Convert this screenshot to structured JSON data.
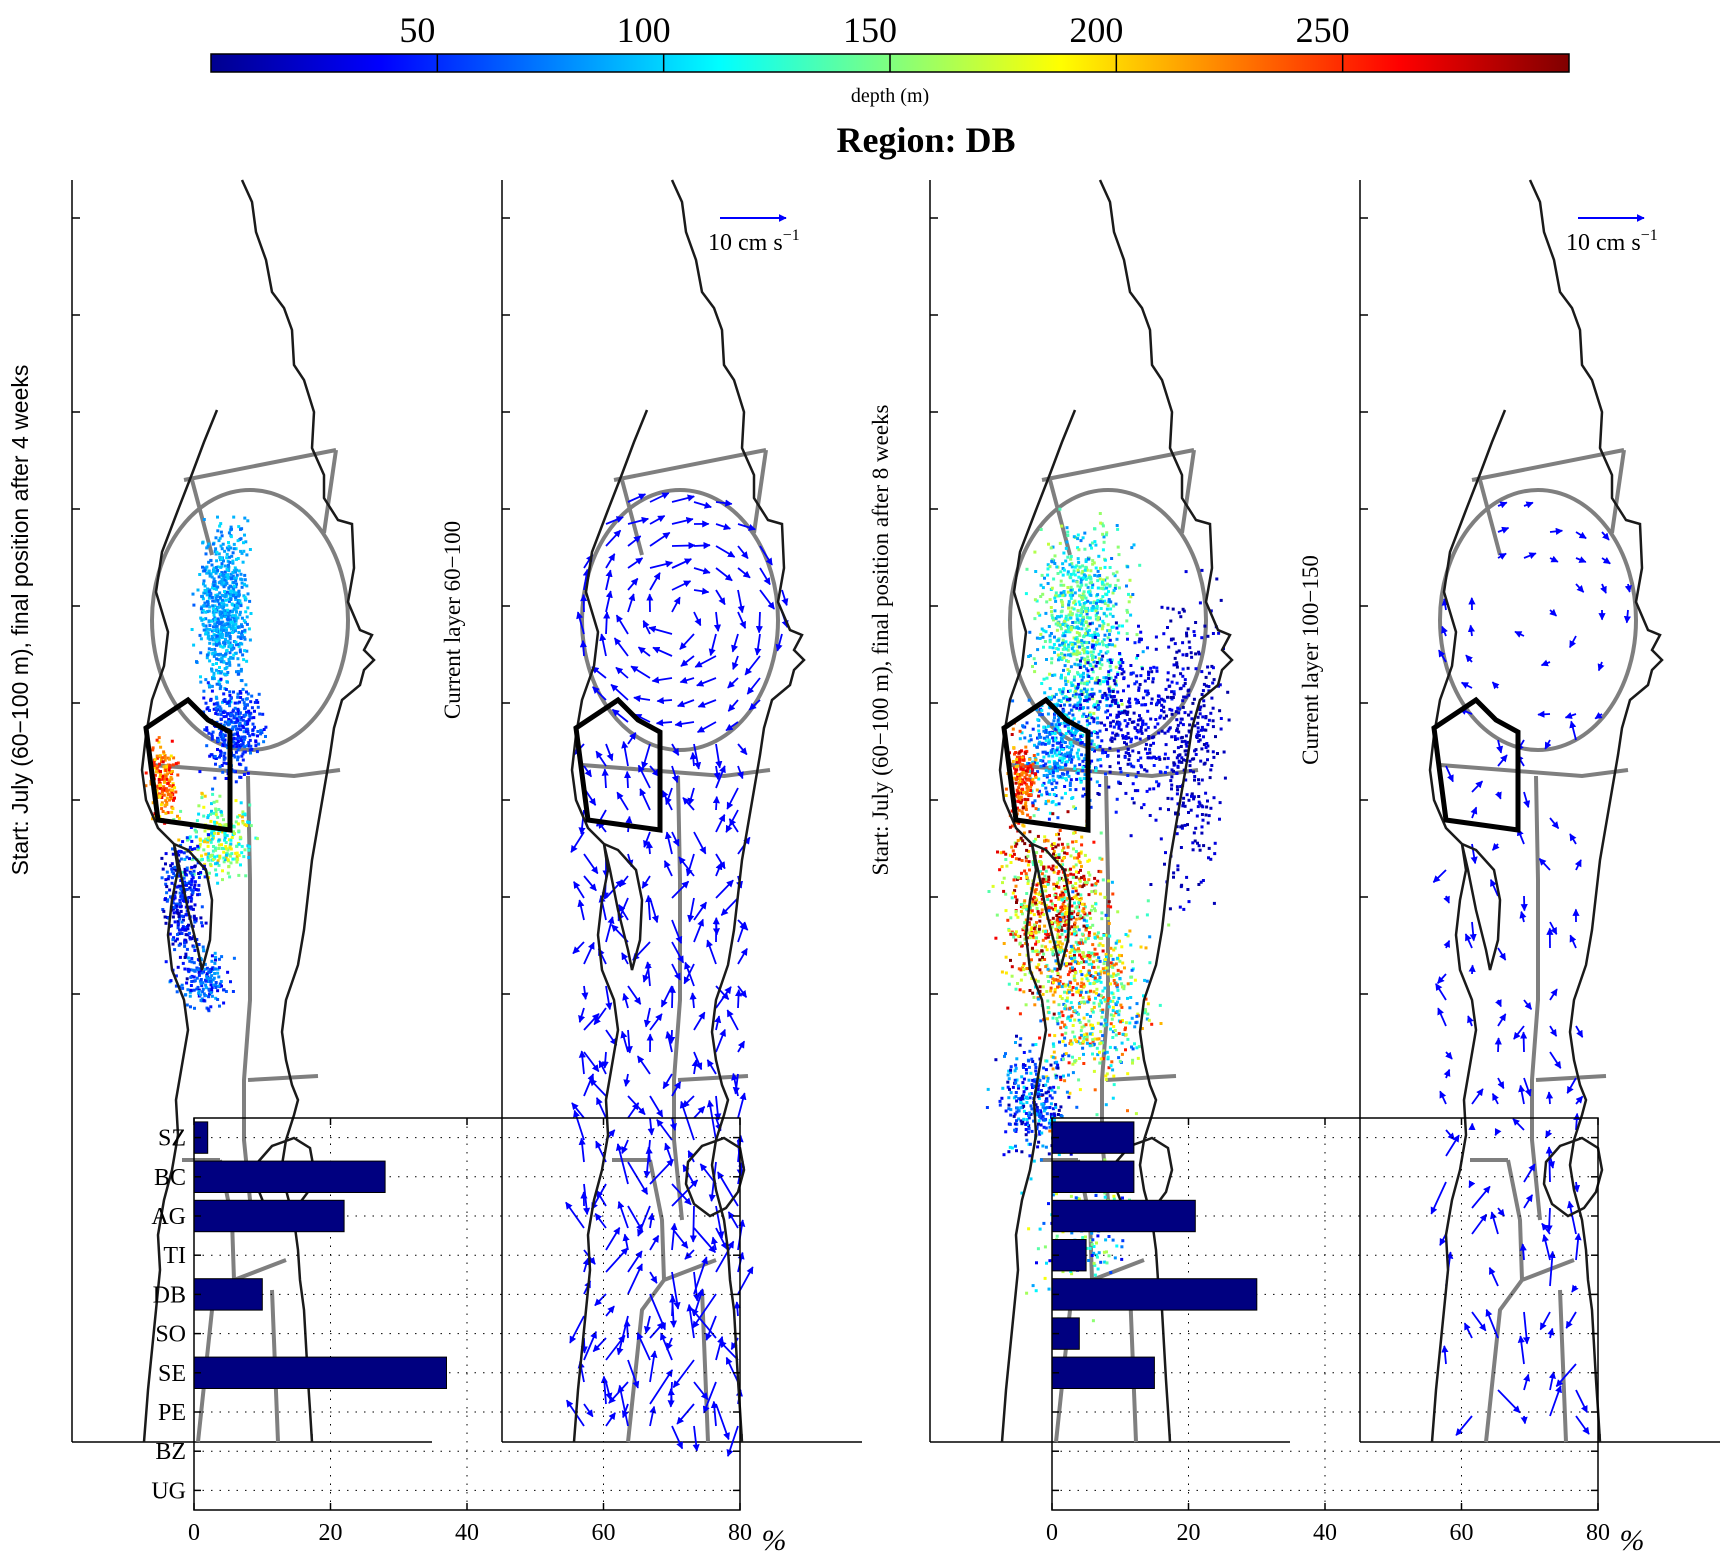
{
  "colorbar": {
    "label": "depth (m)",
    "ticks": [
      50,
      100,
      150,
      200,
      250
    ],
    "range": [
      0,
      300
    ],
    "colormap": "jet"
  },
  "title": "Region: DB",
  "panels": {
    "p1_ylabel": "Start: July (60−100 m), final position after 4 weeks",
    "p2_ylabel": "Current layer 60−100",
    "p3_ylabel": "Start: July (60−100 m), final position after 8 weeks",
    "p4_ylabel": "Current layer 100−150",
    "scale_text": "10 cm s",
    "scale_exp": "−1"
  },
  "colors": {
    "coast": "#1a1a1a",
    "region_lines": "#7f7f7f",
    "highlight_region": "#000000",
    "arrows": "#0000ff",
    "bar_fill": "#000080"
  },
  "chart_data": [
    {
      "type": "bar",
      "orientation": "horizontal",
      "categories": [
        "SZ",
        "BC",
        "AG",
        "TI",
        "DB",
        "SO",
        "SE",
        "PE",
        "BZ",
        "UG"
      ],
      "values": [
        2,
        28,
        22,
        0,
        10,
        0,
        37,
        0,
        0,
        0
      ],
      "xlabel": "%",
      "xlim": [
        0,
        80
      ],
      "xticks": [
        0,
        20,
        40,
        60,
        80
      ],
      "grid": true
    },
    {
      "type": "bar",
      "orientation": "horizontal",
      "categories": [
        "SZ",
        "BC",
        "AG",
        "TI",
        "DB",
        "SO",
        "SE",
        "PE",
        "BZ",
        "UG"
      ],
      "values": [
        12,
        12,
        21,
        5,
        30,
        4,
        15,
        0,
        0,
        0
      ],
      "xlabel": "%",
      "xlim": [
        0,
        80
      ],
      "xticks": [
        0,
        20,
        40,
        60,
        80
      ],
      "grid": true
    }
  ]
}
